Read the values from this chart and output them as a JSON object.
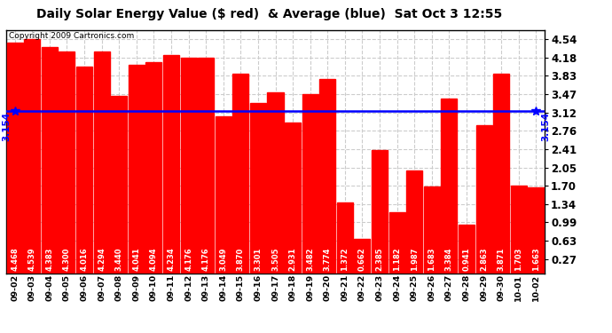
{
  "title": "Daily Solar Energy Value ($ red)  & Average (blue)  Sat Oct 3 12:55",
  "copyright": "Copyright 2009 Cartronics.com",
  "average": 3.154,
  "bar_color": "#FF0000",
  "avg_line_color": "#0000FF",
  "background_color": "#FFFFFF",
  "grid_color": "#CCCCCC",
  "categories": [
    "09-02",
    "09-03",
    "09-04",
    "09-05",
    "09-06",
    "09-07",
    "09-08",
    "09-09",
    "09-10",
    "09-11",
    "09-12",
    "09-13",
    "09-14",
    "09-15",
    "09-16",
    "09-17",
    "09-18",
    "09-19",
    "09-20",
    "09-21",
    "09-22",
    "09-23",
    "09-24",
    "09-25",
    "09-26",
    "09-27",
    "09-28",
    "09-29",
    "09-30",
    "10-01",
    "10-02"
  ],
  "values": [
    4.468,
    4.539,
    4.383,
    4.3,
    4.016,
    4.294,
    3.44,
    4.041,
    4.094,
    4.234,
    4.176,
    4.176,
    3.049,
    3.87,
    3.301,
    3.505,
    2.931,
    3.482,
    3.774,
    1.372,
    0.662,
    2.385,
    1.182,
    1.987,
    1.683,
    3.384,
    0.941,
    2.863,
    3.871,
    1.703,
    1.663
  ],
  "ylim": [
    0,
    4.72
  ],
  "yticks": [
    0.27,
    0.63,
    0.99,
    1.34,
    1.7,
    2.05,
    2.41,
    2.76,
    3.12,
    3.47,
    3.83,
    4.18,
    4.54
  ],
  "label_fontsize": 6.0,
  "avg_label_fontsize": 7.5,
  "title_fontsize": 10,
  "copyright_fontsize": 6.5,
  "ytick_fontsize": 8.5
}
